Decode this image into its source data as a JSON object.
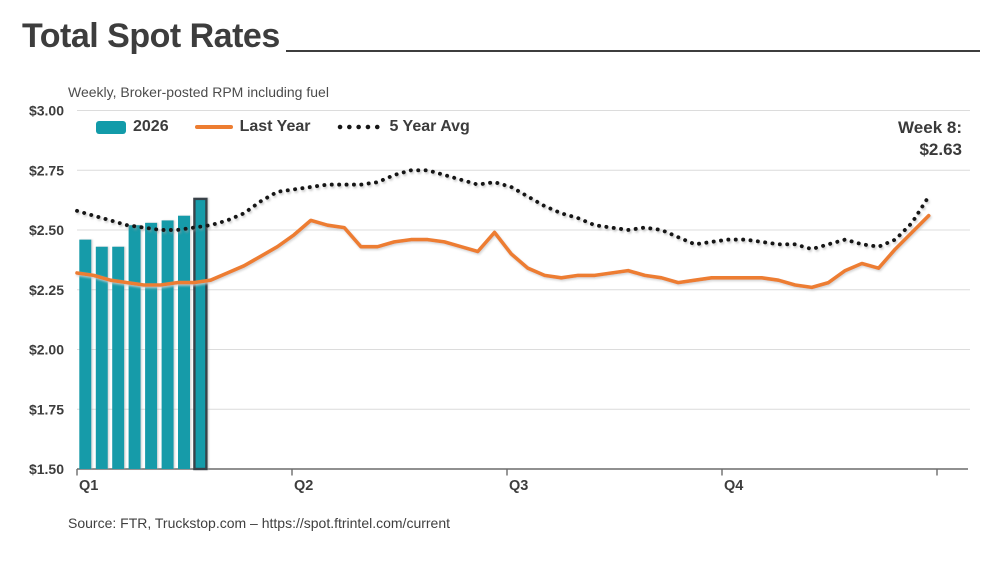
{
  "title": "Total Spot Rates",
  "subtitle": "Weekly, Broker-posted RPM including fuel",
  "annotation": {
    "line1": "Week 8:",
    "line2": "$2.63"
  },
  "source": "Source: FTR, Truckstop.com – https://spot.ftrintel.com/current",
  "legend": {
    "items": [
      {
        "label": "2026",
        "swatch": "bar",
        "color": "#129BA9"
      },
      {
        "label": "Last Year",
        "swatch": "line",
        "color": "#ED7D31"
      },
      {
        "label": "5 Year Avg",
        "swatch": "dotted",
        "color": "#161616"
      }
    ]
  },
  "colors": {
    "bar": "#129BA9",
    "bar_highlight_border": "#37424A",
    "last_year": "#ED7D31",
    "five_year_avg": "#161616",
    "gridline": "#DCDCDC",
    "axis": "#6B6B6B",
    "text": "#3D3D3D"
  },
  "chart_data": {
    "type": "combo (bar + 2 lines)",
    "title": "Total Spot Rates",
    "subtitle": "Weekly, Broker-posted RPM including fuel",
    "x_unit": "week of year, 1-52",
    "ylim": [
      1.5,
      3.0
    ],
    "grid": "horizontal only",
    "legend_position": "top-left",
    "yticks": [
      {
        "label": "$3.00",
        "value": 3.0
      },
      {
        "label": "$2.75",
        "value": 2.75
      },
      {
        "label": "$2.50",
        "value": 2.5
      },
      {
        "label": "$2.25",
        "value": 2.25
      },
      {
        "label": "$2.00",
        "value": 2.0
      },
      {
        "label": "$1.75",
        "value": 1.75
      },
      {
        "label": "$1.50",
        "value": 1.5
      }
    ],
    "xticks": [
      "Q1",
      "Q2",
      "Q3",
      "Q4"
    ],
    "bar_series": {
      "name": "2026",
      "weeks": [
        1,
        2,
        3,
        4,
        5,
        6,
        7,
        8
      ],
      "values": [
        2.46,
        2.43,
        2.43,
        2.52,
        2.53,
        2.54,
        2.56,
        2.63
      ],
      "highlighted_week": 8,
      "highlighted_value": 2.63
    },
    "line_series": [
      {
        "name": "Last Year",
        "style": "solid",
        "values": [
          2.32,
          2.31,
          2.29,
          2.28,
          2.27,
          2.27,
          2.28,
          2.28,
          2.29,
          2.32,
          2.35,
          2.39,
          2.43,
          2.48,
          2.54,
          2.52,
          2.51,
          2.43,
          2.43,
          2.45,
          2.46,
          2.46,
          2.45,
          2.43,
          2.41,
          2.49,
          2.4,
          2.34,
          2.31,
          2.3,
          2.31,
          2.31,
          2.32,
          2.33,
          2.31,
          2.3,
          2.28,
          2.29,
          2.3,
          2.3,
          2.3,
          2.3,
          2.29,
          2.27,
          2.26,
          2.28,
          2.33,
          2.36,
          2.34,
          2.42,
          2.49,
          2.56
        ]
      },
      {
        "name": "5 Year Avg",
        "style": "dotted",
        "values": [
          2.58,
          2.56,
          2.54,
          2.52,
          2.51,
          2.5,
          2.5,
          2.51,
          2.52,
          2.54,
          2.57,
          2.62,
          2.66,
          2.67,
          2.68,
          2.69,
          2.69,
          2.69,
          2.7,
          2.73,
          2.75,
          2.75,
          2.73,
          2.71,
          2.69,
          2.7,
          2.68,
          2.64,
          2.6,
          2.57,
          2.55,
          2.52,
          2.51,
          2.5,
          2.51,
          2.5,
          2.47,
          2.44,
          2.45,
          2.46,
          2.46,
          2.45,
          2.44,
          2.44,
          2.42,
          2.44,
          2.46,
          2.44,
          2.43,
          2.46,
          2.53,
          2.64
        ]
      }
    ]
  }
}
